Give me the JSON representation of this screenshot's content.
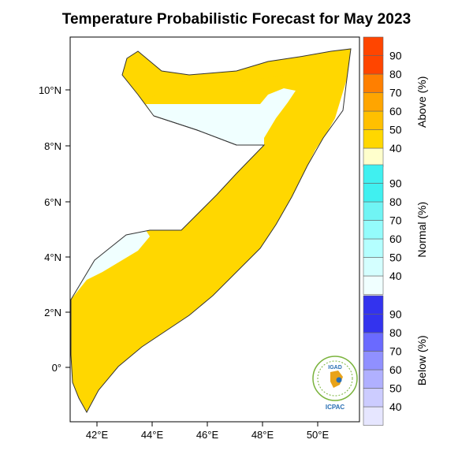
{
  "title": "Temperature Probabilistic Forecast for May 2023",
  "map": {
    "x_ticks": [
      "42°E",
      "44°E",
      "46°E",
      "48°E",
      "50°E"
    ],
    "y_ticks": [
      "10°N",
      "8°N",
      "6°N",
      "4°N",
      "2°N",
      "0°"
    ],
    "colors": {
      "above_40": "#FFFFCC",
      "above_50": "#FFD700",
      "normal_40": "#F0FFFF"
    }
  },
  "legends": [
    {
      "title": "Above (%)",
      "levels": [
        "40",
        "50",
        "60",
        "70",
        "80",
        "90"
      ],
      "colors": [
        "#FFFFCC",
        "#FFD700",
        "#FFC000",
        "#FFA500",
        "#FF7F00",
        "#FF4500"
      ]
    },
    {
      "title": "Normal (%)",
      "levels": [
        "40",
        "50",
        "60",
        "70",
        "80",
        "90"
      ],
      "colors": [
        "#F0FFFF",
        "#D4FFFF",
        "#B4FFFF",
        "#94FCFC",
        "#70F4F4",
        "#40F0F0"
      ]
    },
    {
      "title": "Below (%)",
      "levels": [
        "40",
        "50",
        "60",
        "70",
        "80",
        "90"
      ],
      "colors": [
        "#E6E6FF",
        "#CCCCFF",
        "#B0B0FF",
        "#9090FF",
        "#6A6AFF",
        "#3333EE"
      ]
    }
  ],
  "logo": {
    "top_text": "IGAD",
    "bottom_text": "ICPAC"
  }
}
